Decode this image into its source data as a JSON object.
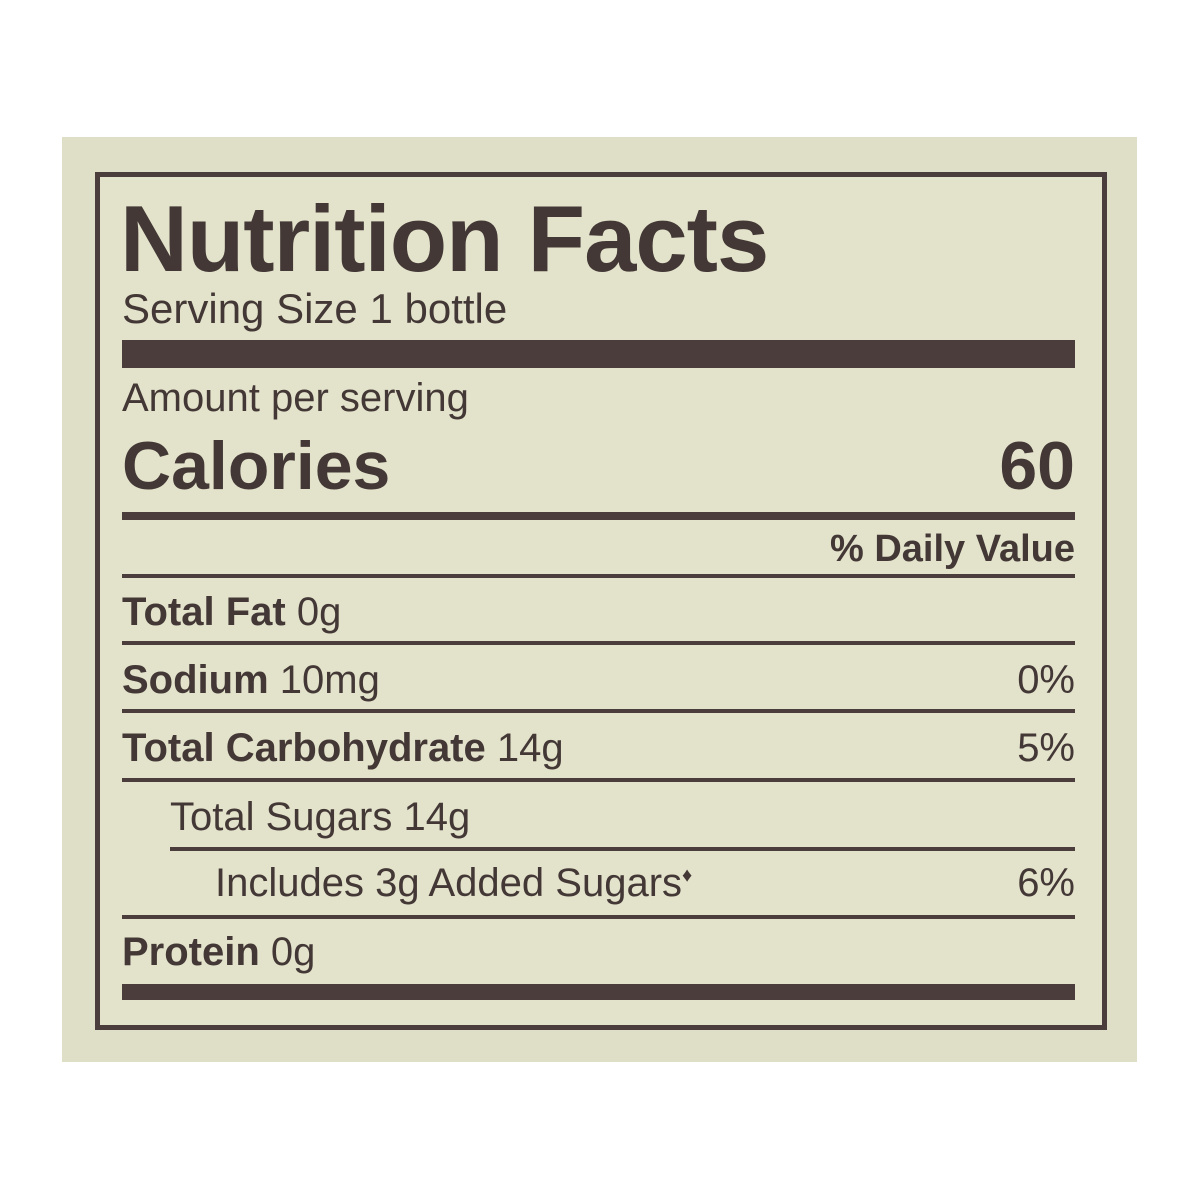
{
  "label": {
    "title": "Nutrition Facts",
    "serving_size": "Serving Size 1 bottle",
    "amount_per_serving": "Amount per serving",
    "calories_label": "Calories",
    "calories_value": "60",
    "dv_header": "% Daily Value",
    "rows": [
      {
        "name": "Total Fat",
        "amount": "0g",
        "dv": ""
      },
      {
        "name": "Sodium",
        "amount": "10mg",
        "dv": "0%"
      },
      {
        "name": "Total Carbohydrate",
        "amount": "14g",
        "dv": "5%"
      },
      {
        "name": "",
        "amount": "Total Sugars 14g",
        "dv": ""
      },
      {
        "name": "",
        "amount": "Includes 3g Added Sugars",
        "dv": "6%"
      },
      {
        "name": "Protein",
        "amount": "0g",
        "dv": ""
      }
    ],
    "footnote_mark": "♦"
  },
  "colors": {
    "ink": "#4a3d3b",
    "background": "#e3e3cb",
    "panel": "#dfdfc8"
  }
}
